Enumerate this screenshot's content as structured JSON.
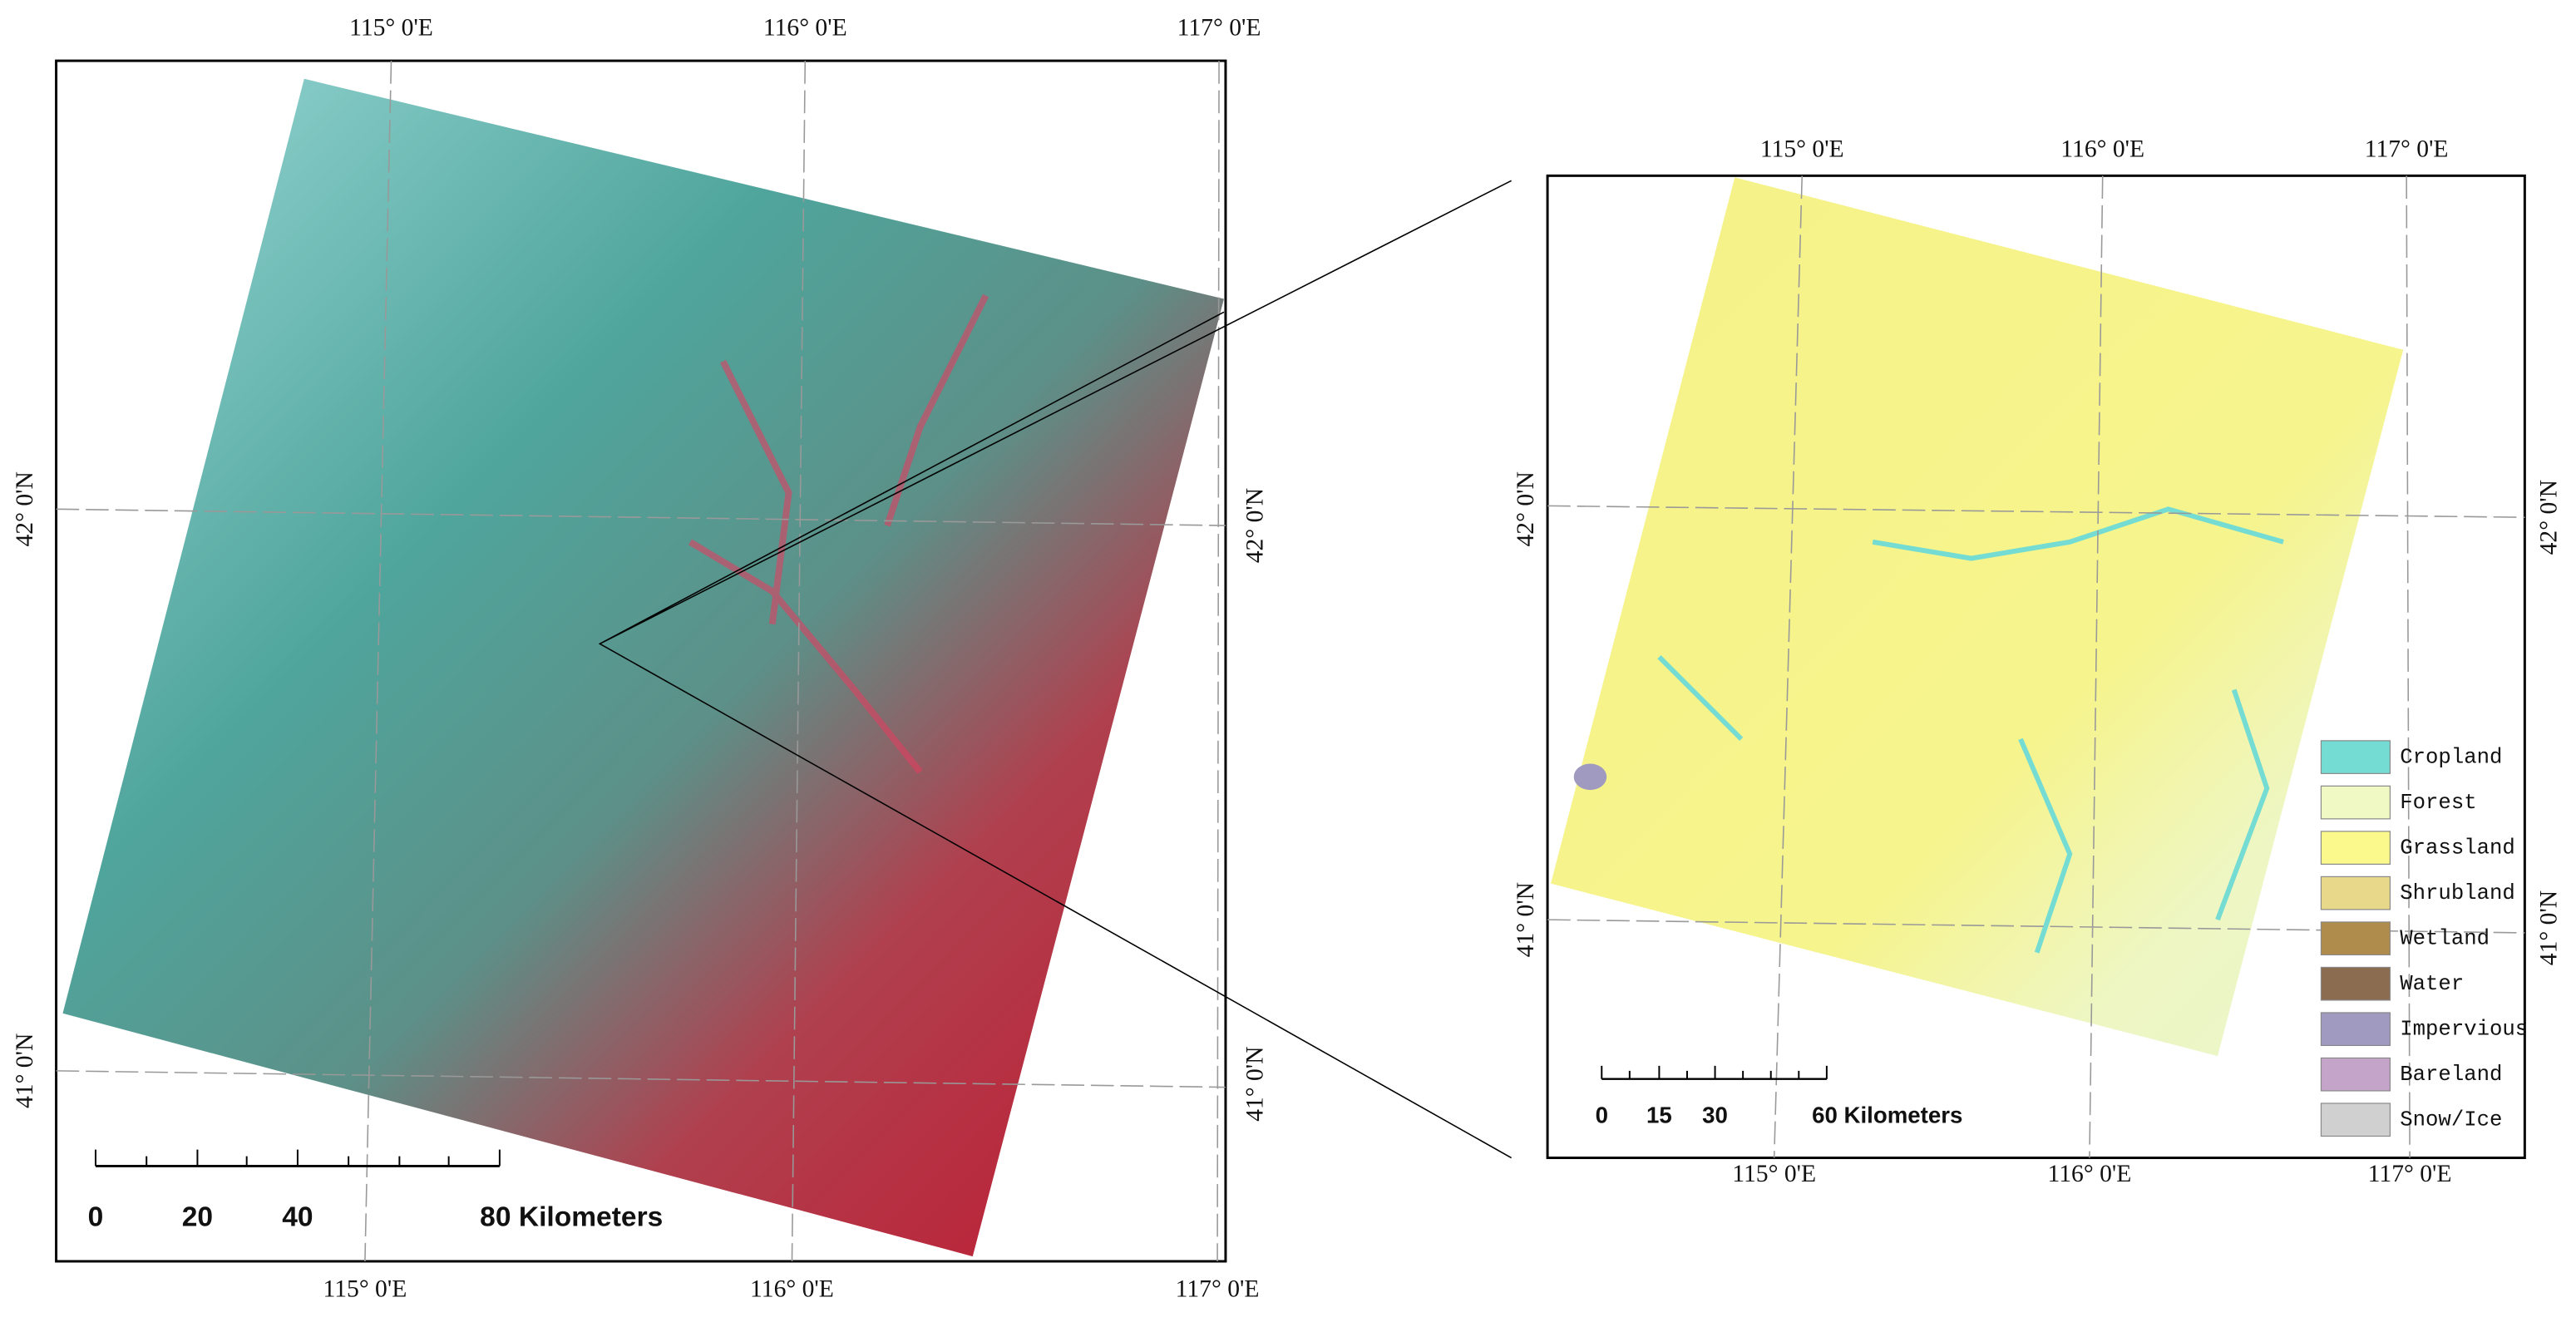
{
  "left_map": {
    "top_labels": [
      "115° 0'E",
      "116° 0'E",
      "117° 0'E"
    ],
    "bottom_labels": [
      "115° 0'E",
      "116° 0'E",
      "117° 0'E"
    ],
    "left_labels": [
      "42° 0'N",
      "41° 0'N"
    ],
    "right_labels": [
      "42° 0'N",
      "41° 0'N"
    ],
    "scale_bar": [
      "0",
      "20",
      "40",
      "80 Kilometers"
    ]
  },
  "right_map": {
    "top_labels": [
      "115° 0'E",
      "116° 0'E",
      "117° 0'E"
    ],
    "bottom_labels": [
      "115° 0'E",
      "116° 0'E",
      "117° 0'E"
    ],
    "left_labels": [
      "42° 0'N",
      "41° 0'N"
    ],
    "right_labels": [
      "42° 0'N",
      "41° 0'N"
    ],
    "scale_bar": [
      "0",
      "15",
      "30",
      "60 Kilometers"
    ]
  },
  "legend": {
    "items": [
      {
        "label": "Cropland",
        "color": "#74dcd2"
      },
      {
        "label": "Forest",
        "color": "#f0f8c4"
      },
      {
        "label": "Grassland",
        "color": "#fbf98c"
      },
      {
        "label": "Shrubland",
        "color": "#e8d88a"
      },
      {
        "label": "Wetland",
        "color": "#b08c4c"
      },
      {
        "label": "Water",
        "color": "#8c6c50"
      },
      {
        "label": "Impervious",
        "color": "#a09ac0"
      },
      {
        "label": "Bareland",
        "color": "#c4a4c8"
      },
      {
        "label": "Snow/Ice",
        "color": "#d0d0d0"
      }
    ]
  }
}
